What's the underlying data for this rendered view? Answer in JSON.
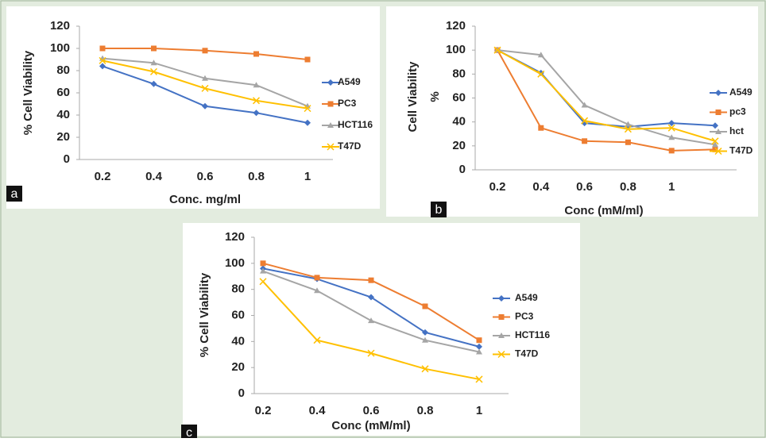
{
  "chart_data": [
    {
      "type": "line",
      "label": "a",
      "ylabel": "% Cell Viability",
      "xlabel": "Conc. mg/ml",
      "categories": [
        "0.2",
        "0.4",
        "0.6",
        "0.8",
        "1"
      ],
      "ylim": [
        0,
        120
      ],
      "yticks": [
        0,
        20,
        40,
        60,
        80,
        100,
        120
      ],
      "series": [
        {
          "name": "A549",
          "color": "#4472c4",
          "marker": "diamond",
          "values": [
            84,
            68,
            48,
            42,
            33
          ]
        },
        {
          "name": "PC3",
          "color": "#ed7d31",
          "marker": "square",
          "values": [
            100,
            100,
            98,
            95,
            90
          ]
        },
        {
          "name": "HCT116",
          "color": "#a5a5a5",
          "marker": "triangle",
          "values": [
            91,
            87,
            73,
            67,
            48
          ]
        },
        {
          "name": "T47D",
          "color": "#ffc000",
          "marker": "x",
          "values": [
            89,
            79,
            64,
            53,
            46
          ]
        }
      ]
    },
    {
      "type": "line",
      "label": "b",
      "ylabel": [
        "%",
        "Cell Viability"
      ],
      "xlabel": "Conc (mM/ml)",
      "categories": [
        "0.2",
        "0.4",
        "0.6",
        "0.8",
        "1",
        null
      ],
      "ylim": [
        0,
        120
      ],
      "yticks": [
        0,
        20,
        40,
        60,
        80,
        100,
        120
      ],
      "series": [
        {
          "name": "A549",
          "color": "#4472c4",
          "marker": "diamond",
          "values": [
            100,
            81,
            39,
            36,
            39,
            37
          ]
        },
        {
          "name": "pc3",
          "color": "#ed7d31",
          "marker": "square",
          "values": [
            100,
            35,
            24,
            23,
            16,
            17
          ]
        },
        {
          "name": "hct",
          "color": "#a5a5a5",
          "marker": "triangle",
          "values": [
            100,
            96,
            54,
            38,
            27,
            21
          ]
        },
        {
          "name": "T47D",
          "color": "#ffc000",
          "marker": "x",
          "values": [
            100,
            80,
            41,
            34,
            35,
            24
          ]
        }
      ]
    },
    {
      "type": "line",
      "label": "c",
      "ylabel": "% Cell Viability",
      "xlabel": "Conc (mM/ml)",
      "categories": [
        "0.2",
        "0.4",
        "0.6",
        "0.8",
        "1"
      ],
      "ylim": [
        0,
        120
      ],
      "yticks": [
        0,
        20,
        40,
        60,
        80,
        100,
        120
      ],
      "series": [
        {
          "name": "A549",
          "color": "#4472c4",
          "marker": "diamond",
          "values": [
            96,
            88,
            74,
            47,
            36
          ]
        },
        {
          "name": "PC3",
          "color": "#ed7d31",
          "marker": "square",
          "values": [
            100,
            89,
            87,
            67,
            41
          ]
        },
        {
          "name": "HCT116",
          "color": "#a5a5a5",
          "marker": "triangle",
          "values": [
            94,
            79,
            56,
            41,
            32
          ]
        },
        {
          "name": "T47D",
          "color": "#ffc000",
          "marker": "x",
          "values": [
            86,
            41,
            31,
            19,
            11
          ]
        }
      ]
    }
  ]
}
